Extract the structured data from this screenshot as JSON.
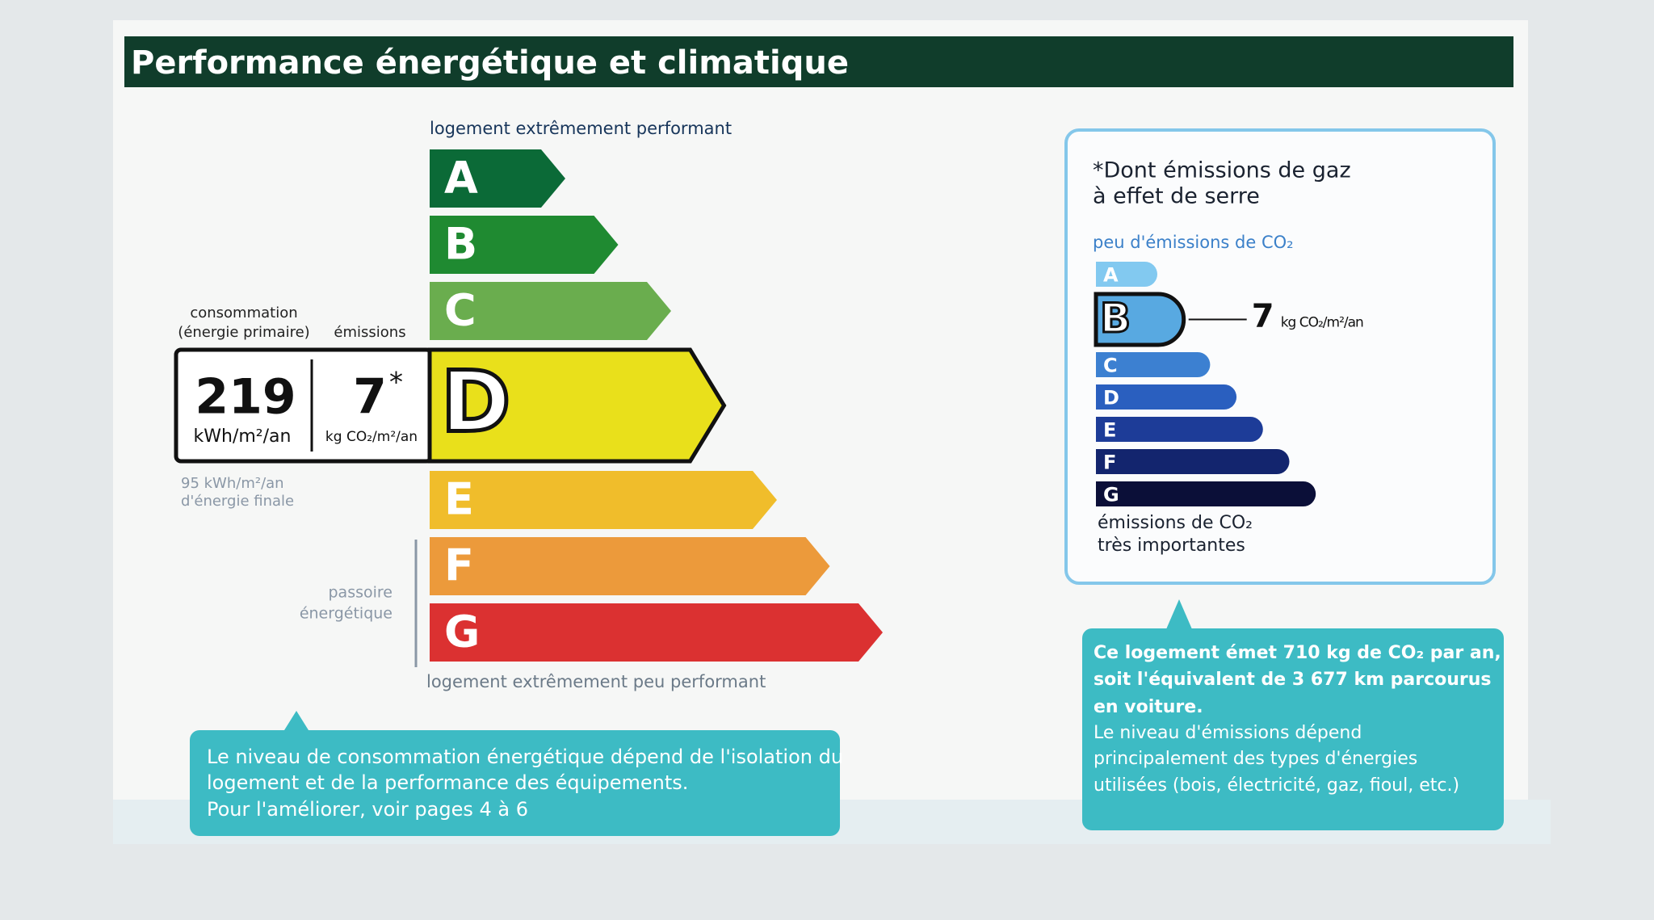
{
  "header": {
    "title": "Performance énergétique et climatique"
  },
  "energy_scale": {
    "top_label": "logement extrêmement performant",
    "bottom_label": "logement extrêmement peu performant",
    "classes": [
      "A",
      "B",
      "C",
      "D",
      "E",
      "F",
      "G"
    ],
    "colors": [
      "#0b6a37",
      "#1f8a31",
      "#6aad4e",
      "#e9e01b",
      "#f0bd2b",
      "#ec9a3b",
      "#db3131"
    ],
    "selected": "D"
  },
  "consumption": {
    "header_lines": [
      "consommation",
      "(énergie primaire)"
    ],
    "value": 219,
    "unit": "kWh/m²/an"
  },
  "emissions": {
    "header": "émissions",
    "value": 7,
    "marker": "*",
    "unit": "kg CO₂/m²/an"
  },
  "final_energy": {
    "lines": [
      "95 kWh/m²/an",
      "d'énergie finale"
    ]
  },
  "passoire": {
    "lines": [
      "passoire",
      "énergétique"
    ]
  },
  "note_left": {
    "lines": [
      "Le niveau de consommation énergétique dépend de l'isolation du",
      "logement et de la performance des équipements.",
      "Pour l'améliorer, voir pages 4 à 6"
    ]
  },
  "ghg": {
    "title_lines": [
      "*Dont émissions de gaz",
      "à effet de serre"
    ],
    "top_label": "peu d'émissions de CO₂",
    "classes": [
      "A",
      "B",
      "C",
      "D",
      "E",
      "F",
      "G"
    ],
    "colors": [
      "#82c9f0",
      "#58a9e1",
      "#3c80d1",
      "#2a5fbf",
      "#1d3c98",
      "#13256e",
      "#0b0f38"
    ],
    "selected": "B",
    "value": 7,
    "unit": "kg CO₂/m²/an",
    "bottom_lines": [
      "émissions de CO₂",
      "très importantes"
    ]
  },
  "note_right": {
    "bold_lines": [
      "Ce logement émet 710 kg de CO₂ par an,",
      "soit l'équivalent de 3 677 km parcourus",
      "en voiture."
    ],
    "lines": [
      "Le niveau d'émissions dépend",
      "principalement des types d'énergies",
      "utilisées (bois, électricité, gaz, fioul, etc.)"
    ]
  }
}
